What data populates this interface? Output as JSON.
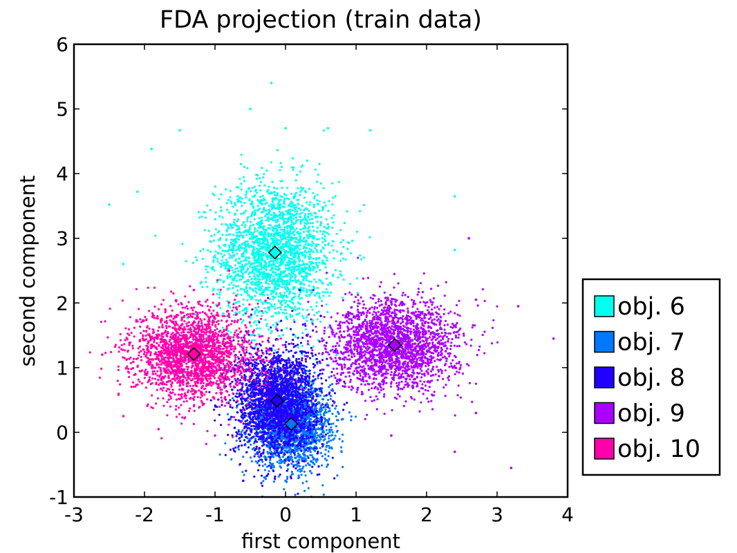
{
  "chart_data": {
    "type": "scatter",
    "title": "FDA projection (train data)",
    "xlabel": "first component",
    "ylabel": "second component",
    "xlim": [
      -3,
      4
    ],
    "ylim": [
      -1,
      6
    ],
    "x_ticks": [
      "-3",
      "-2",
      "-1",
      "0",
      "1",
      "2",
      "3",
      "4"
    ],
    "y_ticks": [
      "-1",
      "0",
      "1",
      "2",
      "3",
      "4",
      "5",
      "6"
    ],
    "grid": false,
    "legend_position": "right",
    "series": [
      {
        "name": "obj. 6",
        "color": "#00ffee",
        "centroid": [
          -0.15,
          2.78
        ],
        "spread": [
          0.42,
          0.55
        ],
        "samples": [
          [
            -2.5,
            3.52
          ],
          [
            -1.9,
            4.38
          ],
          [
            -1.5,
            4.67
          ],
          [
            -0.5,
            5.0
          ],
          [
            0.0,
            4.7
          ],
          [
            -0.2,
            5.4
          ],
          [
            0.6,
            4.7
          ],
          [
            2.4,
            3.65
          ],
          [
            2.4,
            2.82
          ],
          [
            1.2,
            4.67
          ],
          [
            -2.1,
            3.72
          ],
          [
            -2.3,
            2.6
          ]
        ]
      },
      {
        "name": "obj. 7",
        "color": "#0077ff",
        "centroid": [
          0.08,
          0.13
        ],
        "spread": [
          0.28,
          0.32
        ],
        "samples": [
          [
            0.0,
            -0.75
          ],
          [
            0.6,
            -0.5
          ],
          [
            0.8,
            0.2
          ],
          [
            -0.3,
            -0.7
          ],
          [
            0.35,
            -0.6
          ]
        ]
      },
      {
        "name": "obj. 8",
        "color": "#2200ff",
        "centroid": [
          -0.12,
          0.49
        ],
        "spread": [
          0.3,
          0.42
        ],
        "samples": [
          [
            -0.6,
            -0.75
          ],
          [
            0.3,
            1.5
          ],
          [
            0.2,
            2.2
          ],
          [
            -0.9,
            0.9
          ],
          [
            0.5,
            1.8
          ]
        ]
      },
      {
        "name": "obj. 9",
        "color": "#aa00ff",
        "centroid": [
          1.55,
          1.35
        ],
        "spread": [
          0.45,
          0.35
        ],
        "samples": [
          [
            3.3,
            1.95
          ],
          [
            3.8,
            1.45
          ],
          [
            3.2,
            -0.55
          ],
          [
            2.7,
            0.3
          ],
          [
            2.7,
            2.05
          ],
          [
            2.6,
            3.0
          ],
          [
            1.5,
            -0.05
          ],
          [
            2.4,
            -0.3
          ]
        ]
      },
      {
        "name": "obj. 10",
        "color": "#ff00aa",
        "centroid": [
          -1.3,
          1.21
        ],
        "spread": [
          0.42,
          0.35
        ],
        "samples": [
          [
            -2.6,
            1.2
          ],
          [
            -2.3,
            0.25
          ],
          [
            -1.8,
            0.05
          ],
          [
            -0.8,
            2.5
          ],
          [
            -1.0,
            -0.05
          ],
          [
            -1.3,
            2.2
          ]
        ]
      }
    ]
  }
}
